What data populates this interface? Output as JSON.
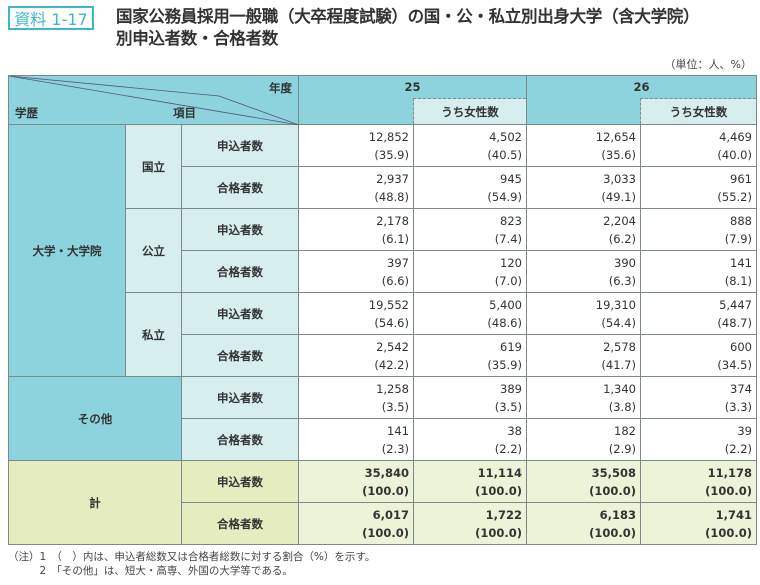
{
  "badge": "資料 1-17",
  "title_line1": "国家公務員採用一般職（大卒程度試験）の国・公・私立別出身大学（含大学院）",
  "title_line2": "別申込者数・合格者数",
  "unit": "（単位：人、%）",
  "header": {
    "year_label": "年度",
    "item_label": "項目",
    "education_label": "学歴",
    "years": [
      "25",
      "26"
    ],
    "female_label": "うち女性数"
  },
  "groups": [
    {
      "label": "大学・大学院",
      "subgroups": [
        {
          "label": "国立",
          "rows": [
            {
              "item": "申込者数",
              "cells": [
                [
                  "12,852",
                  "(35.9)"
                ],
                [
                  "4,502",
                  "(40.5)"
                ],
                [
                  "12,654",
                  "(35.6)"
                ],
                [
                  "4,469",
                  "(40.0)"
                ]
              ]
            },
            {
              "item": "合格者数",
              "cells": [
                [
                  "2,937",
                  "(48.8)"
                ],
                [
                  "945",
                  "(54.9)"
                ],
                [
                  "3,033",
                  "(49.1)"
                ],
                [
                  "961",
                  "(55.2)"
                ]
              ]
            }
          ]
        },
        {
          "label": "公立",
          "rows": [
            {
              "item": "申込者数",
              "cells": [
                [
                  "2,178",
                  "(6.1)"
                ],
                [
                  "823",
                  "(7.4)"
                ],
                [
                  "2,204",
                  "(6.2)"
                ],
                [
                  "888",
                  "(7.9)"
                ]
              ]
            },
            {
              "item": "合格者数",
              "cells": [
                [
                  "397",
                  "(6.6)"
                ],
                [
                  "120",
                  "(7.0)"
                ],
                [
                  "390",
                  "(6.3)"
                ],
                [
                  "141",
                  "(8.1)"
                ]
              ]
            }
          ]
        },
        {
          "label": "私立",
          "rows": [
            {
              "item": "申込者数",
              "cells": [
                [
                  "19,552",
                  "(54.6)"
                ],
                [
                  "5,400",
                  "(48.6)"
                ],
                [
                  "19,310",
                  "(54.4)"
                ],
                [
                  "5,447",
                  "(48.7)"
                ]
              ]
            },
            {
              "item": "合格者数",
              "cells": [
                [
                  "2,542",
                  "(42.2)"
                ],
                [
                  "619",
                  "(35.9)"
                ],
                [
                  "2,578",
                  "(41.7)"
                ],
                [
                  "600",
                  "(34.5)"
                ]
              ]
            }
          ]
        }
      ]
    },
    {
      "label": "その他",
      "rows": [
        {
          "item": "申込者数",
          "cells": [
            [
              "1,258",
              "(3.5)"
            ],
            [
              "389",
              "(3.5)"
            ],
            [
              "1,340",
              "(3.8)"
            ],
            [
              "374",
              "(3.3)"
            ]
          ]
        },
        {
          "item": "合格者数",
          "cells": [
            [
              "141",
              "(2.3)"
            ],
            [
              "38",
              "(2.2)"
            ],
            [
              "182",
              "(2.9)"
            ],
            [
              "39",
              "(2.2)"
            ]
          ]
        }
      ]
    },
    {
      "label": "計",
      "total": true,
      "rows": [
        {
          "item": "申込者数",
          "cells": [
            [
              "35,840",
              "(100.0)"
            ],
            [
              "11,114",
              "(100.0)"
            ],
            [
              "35,508",
              "(100.0)"
            ],
            [
              "11,178",
              "(100.0)"
            ]
          ]
        },
        {
          "item": "合格者数",
          "cells": [
            [
              "6,017",
              "(100.0)"
            ],
            [
              "1,722",
              "(100.0)"
            ],
            [
              "6,183",
              "(100.0)"
            ],
            [
              "1,741",
              "(100.0)"
            ]
          ]
        }
      ]
    }
  ],
  "notes": [
    "（注）1　（　）内は、申込者総数又は合格者総数に対する割合（%）を示す。",
    "　　　2　「その他」は、短大・高専、外国の大学等である。"
  ]
}
